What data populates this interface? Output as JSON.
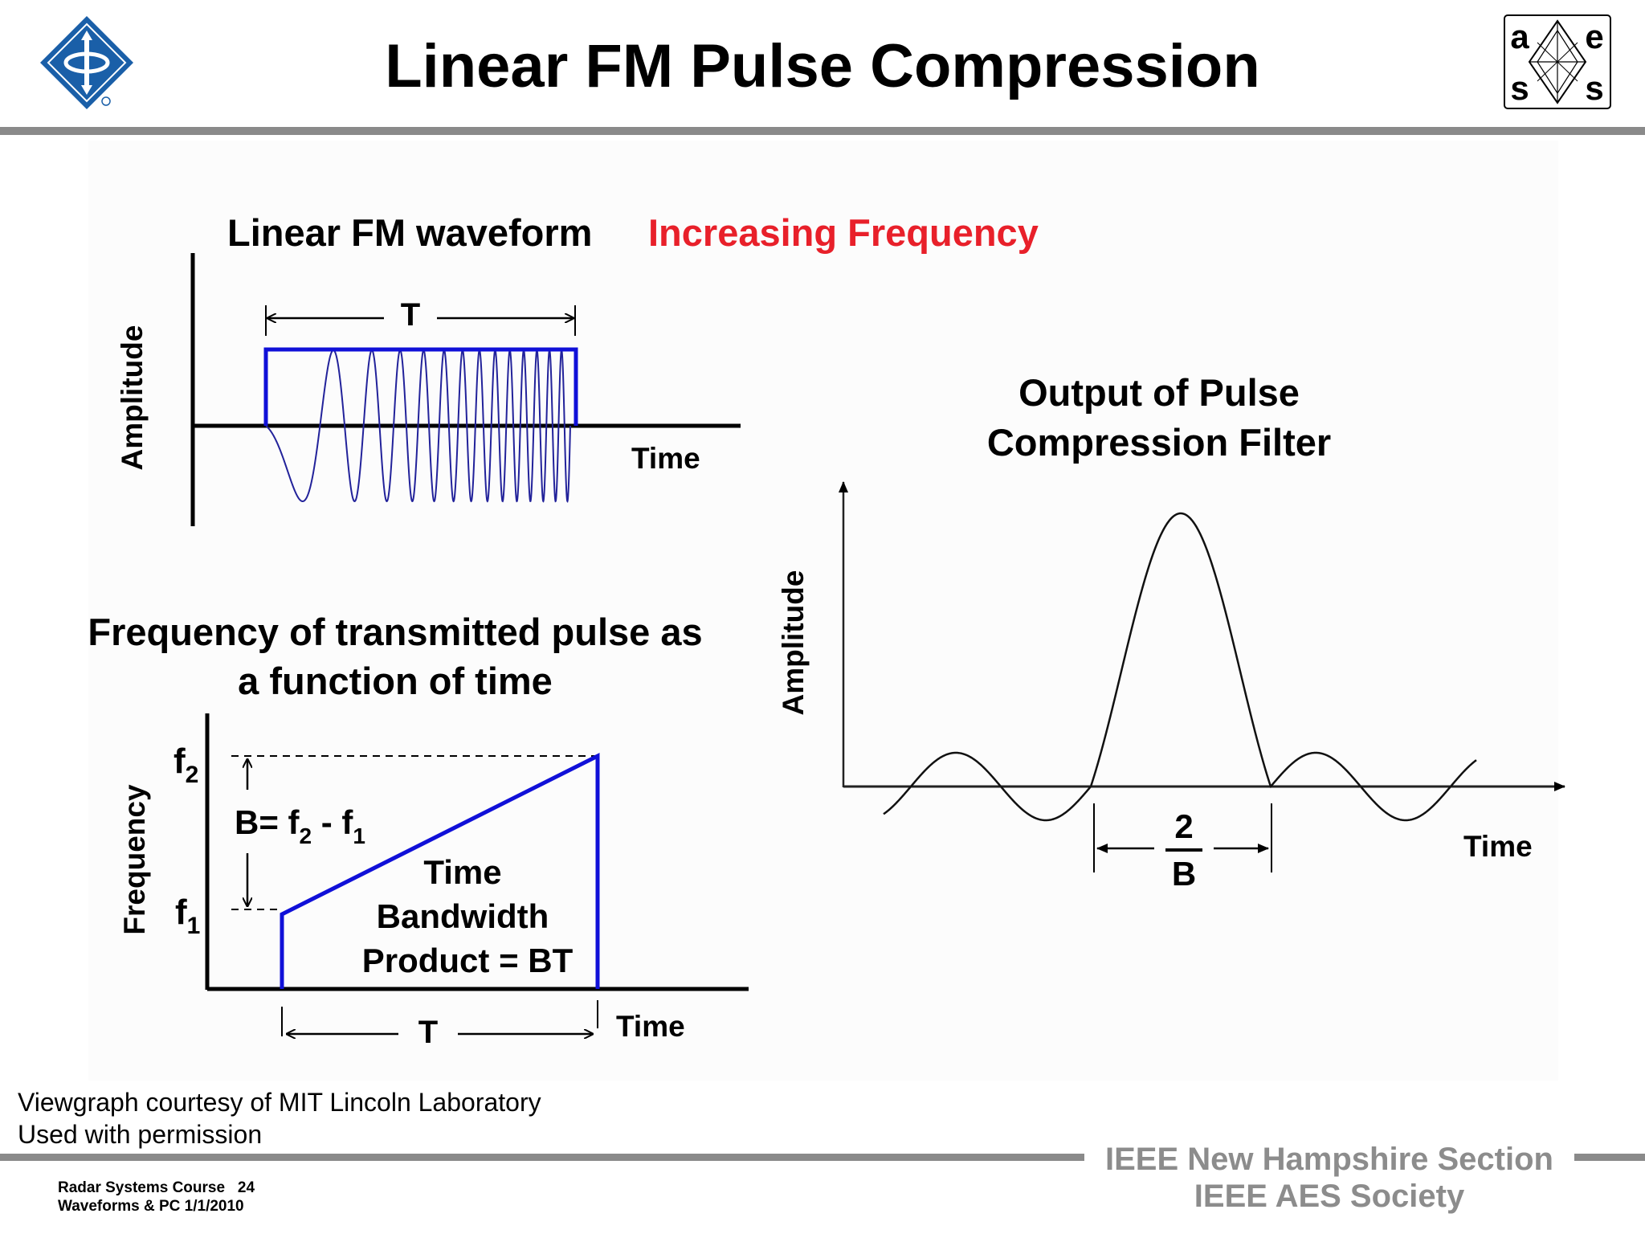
{
  "title": "Linear FM Pulse Compression",
  "logo_right": {
    "letters": [
      "a",
      "e",
      "s",
      "s"
    ]
  },
  "waveform": {
    "title_main": "Linear FM waveform",
    "title_accent": "Increasing Frequency",
    "accent_color": "#e8202a",
    "ylabel": "Amplitude",
    "xlabel": "Time",
    "duration_label": "T"
  },
  "frequency_plot": {
    "title_line1": "Frequency of transmitted pulse as",
    "title_line2": "a function of time",
    "ylabel": "Frequency",
    "xlabel": "Time",
    "f2_label": "f",
    "f2_sub": "2",
    "f1_label": "f",
    "f1_sub": "1",
    "bandwidth_prefix": "B= f",
    "bandwidth_sub1": "2",
    "bandwidth_mid": " - f",
    "bandwidth_sub2": "1",
    "tbp_line1": "Time",
    "tbp_line2": "Bandwidth",
    "tbp_line3": "Product = BT",
    "duration_label": "T",
    "line_color": "#1010d8"
  },
  "output_plot": {
    "title_line1": "Output of Pulse",
    "title_line2": "Compression Filter",
    "ylabel": "Amplitude",
    "xlabel": "Time",
    "width_numerator": "2",
    "width_denominator": "B"
  },
  "credit_line1": "Viewgraph courtesy of MIT Lincoln Laboratory",
  "credit_line2": "Used with permission",
  "footer": {
    "course": "Radar Systems Course",
    "page": "24",
    "subtitle": "Waveforms & PC  1/1/2010",
    "section_line1": "IEEE New Hampshire Section",
    "section_line2": "IEEE AES Society"
  }
}
